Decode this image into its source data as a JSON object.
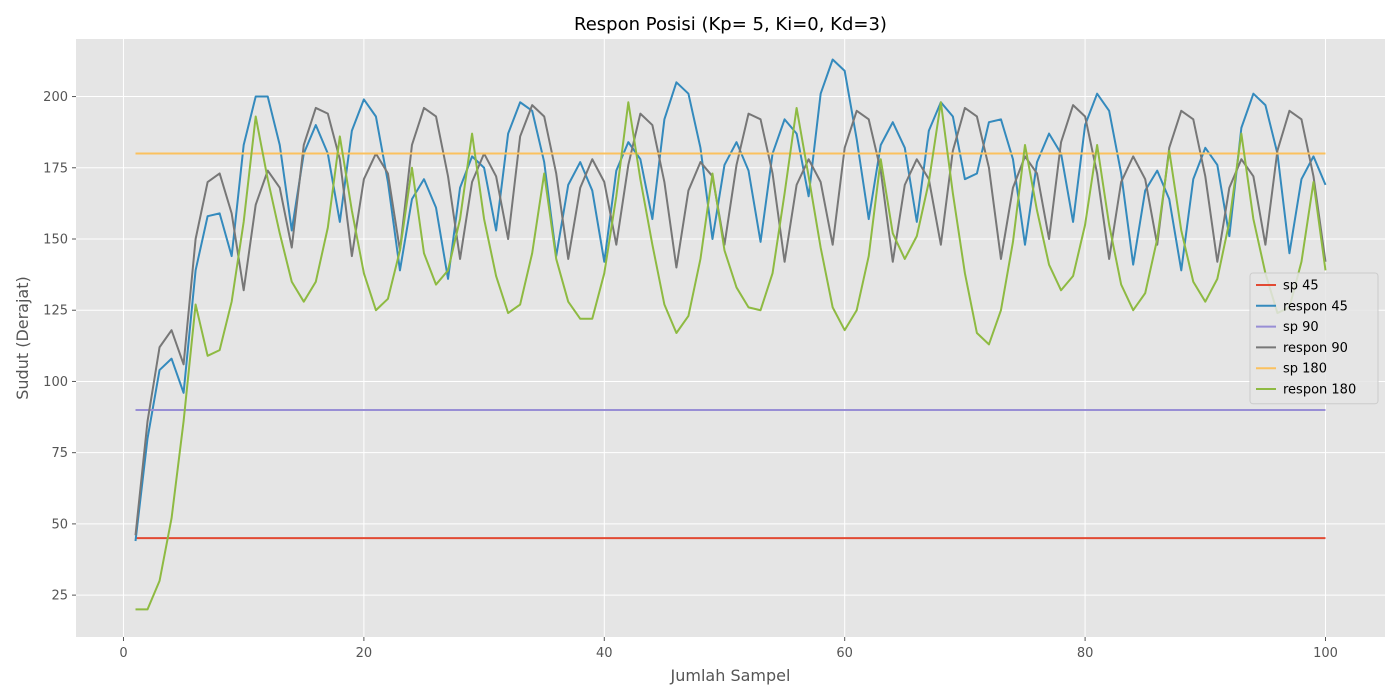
{
  "chart_data": {
    "type": "line",
    "title": "Respon Posisi (Kp= 5, Ki=0, Kd=3)",
    "xlabel": "Jumlah Sampel",
    "ylabel": "Sudut (Derajat)",
    "xlim": [
      -3.95,
      104.95
    ],
    "ylim": [
      10.3,
      220.2
    ],
    "xticks": [
      0,
      20,
      40,
      60,
      80,
      100
    ],
    "yticks": [
      25,
      50,
      75,
      100,
      125,
      150,
      175,
      200
    ],
    "grid": true,
    "legend_position": "center-right",
    "series": [
      {
        "name": "sp 45",
        "color": "#E24A33",
        "x": [
          1,
          100
        ],
        "y": [
          45,
          45
        ]
      },
      {
        "name": "respon 45",
        "color": "#348ABD",
        "x_start": 1,
        "y": [
          44,
          80,
          104,
          108,
          96,
          139,
          158,
          159,
          144,
          183,
          200,
          200,
          183,
          153,
          180,
          190,
          180,
          156,
          188,
          199,
          193,
          170,
          139,
          164,
          171,
          161,
          136,
          168,
          179,
          175,
          153,
          187,
          198,
          195,
          177,
          144,
          169,
          177,
          167,
          142,
          174,
          184,
          178,
          157,
          192,
          205,
          201,
          182,
          150,
          176,
          184,
          174,
          149,
          180,
          192,
          187,
          165,
          201,
          213,
          209,
          185,
          157,
          183,
          191,
          182,
          156,
          188,
          198,
          193,
          171,
          173,
          191,
          192,
          178,
          148,
          177,
          187,
          180,
          156,
          190,
          201,
          195,
          173,
          141,
          167,
          174,
          164,
          139,
          171,
          182,
          176,
          151,
          189,
          201,
          197,
          180,
          145,
          171,
          179,
          169
        ]
      },
      {
        "name": "sp 90",
        "color": "#988ED5",
        "x": [
          1,
          100
        ],
        "y": [
          90,
          90
        ]
      },
      {
        "name": "respon 90",
        "color": "#777777",
        "x_start": 1,
        "y": [
          46,
          86,
          112,
          118,
          106,
          150,
          170,
          173,
          159,
          132,
          162,
          174,
          168,
          147,
          183,
          196,
          194,
          178,
          144,
          171,
          180,
          173,
          146,
          183,
          196,
          193,
          172,
          143,
          170,
          180,
          172,
          150,
          186,
          197,
          193,
          173,
          143,
          168,
          178,
          170,
          148,
          176,
          194,
          190,
          170,
          140,
          167,
          177,
          172,
          148,
          176,
          194,
          192,
          173,
          142,
          169,
          178,
          170,
          148,
          182,
          195,
          192,
          174,
          142,
          169,
          178,
          171,
          148,
          181,
          196,
          193,
          175,
          143,
          168,
          179,
          173,
          150,
          184,
          197,
          193,
          173,
          143,
          170,
          179,
          171,
          148,
          182,
          195,
          192,
          172,
          142,
          168,
          178,
          172,
          148,
          181,
          195,
          192,
          172,
          142
        ]
      },
      {
        "name": "sp 180",
        "color": "#FBC15E",
        "x": [
          1,
          100
        ],
        "y": [
          180,
          180
        ]
      },
      {
        "name": "respon 180",
        "color": "#8EBA42",
        "x_start": 1,
        "y": [
          20,
          20,
          30,
          52,
          86,
          127,
          109,
          111,
          128,
          156,
          193,
          171,
          152,
          135,
          128,
          135,
          154,
          186,
          160,
          138,
          125,
          129,
          146,
          175,
          145,
          134,
          139,
          157,
          187,
          157,
          137,
          124,
          127,
          145,
          173,
          143,
          128,
          122,
          122,
          138,
          165,
          198,
          171,
          148,
          127,
          117,
          123,
          143,
          173,
          146,
          133,
          126,
          125,
          138,
          166,
          196,
          172,
          147,
          126,
          118,
          125,
          144,
          178,
          152,
          143,
          151,
          170,
          198,
          166,
          138,
          117,
          113,
          125,
          149,
          183,
          160,
          141,
          132,
          137,
          155,
          183,
          155,
          134,
          125,
          131,
          150,
          181,
          153,
          135,
          128,
          136,
          156,
          187,
          157,
          138,
          124,
          126,
          142,
          170,
          139
        ]
      }
    ]
  }
}
